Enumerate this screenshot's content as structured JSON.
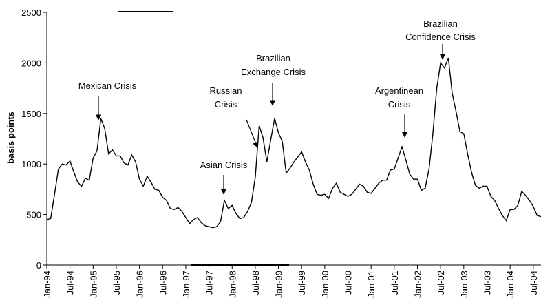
{
  "chart_data": {
    "type": "line",
    "y_label": "basis points",
    "categories": [
      "Jan-94",
      null,
      null,
      null,
      null,
      null,
      "Jul-94",
      null,
      null,
      null,
      null,
      null,
      "Jan-95",
      null,
      null,
      null,
      null,
      null,
      "Jul-95",
      null,
      null,
      null,
      null,
      null,
      "Jan-96",
      null,
      null,
      null,
      null,
      null,
      "Jul-96",
      null,
      null,
      null,
      null,
      null,
      "Jan-97",
      null,
      null,
      null,
      null,
      null,
      "Jul-97",
      null,
      null,
      null,
      null,
      null,
      "Jan-98",
      null,
      null,
      null,
      null,
      null,
      "Jul-98",
      null,
      null,
      null,
      null,
      null,
      "Jan-99",
      null,
      null,
      null,
      null,
      null,
      "Jul-99",
      null,
      null,
      null,
      null,
      null,
      "Jan-00",
      null,
      null,
      null,
      null,
      null,
      "Jul-00",
      null,
      null,
      null,
      null,
      null,
      "Jan-01",
      null,
      null,
      null,
      null,
      null,
      "Jul-01",
      null,
      null,
      null,
      null,
      null,
      "Jan-02",
      null,
      null,
      null,
      null,
      null,
      "Jul-02",
      null,
      null,
      null,
      null,
      null,
      "Jan-03",
      null,
      null,
      null,
      null,
      null,
      "Jul-03",
      null,
      null,
      null,
      null,
      null,
      "Jan-04",
      null,
      null,
      null,
      null,
      null,
      "Jul-04",
      null,
      null
    ],
    "values": [
      450,
      460,
      700,
      950,
      1000,
      990,
      1030,
      920,
      820,
      780,
      860,
      840,
      1060,
      1130,
      1450,
      1350,
      1100,
      1140,
      1080,
      1080,
      1010,
      990,
      1090,
      1020,
      850,
      780,
      880,
      820,
      750,
      740,
      670,
      640,
      560,
      550,
      570,
      530,
      470,
      410,
      450,
      470,
      420,
      390,
      380,
      370,
      380,
      430,
      640,
      560,
      590,
      510,
      460,
      470,
      530,
      620,
      870,
      1380,
      1260,
      1020,
      1240,
      1450,
      1310,
      1220,
      910,
      960,
      1020,
      1070,
      1120,
      1020,
      940,
      800,
      700,
      690,
      700,
      660,
      760,
      810,
      720,
      700,
      680,
      700,
      750,
      800,
      780,
      720,
      710,
      760,
      810,
      840,
      840,
      940,
      950,
      1060,
      1170,
      1040,
      900,
      850,
      850,
      740,
      760,
      950,
      1300,
      1750,
      2000,
      1950,
      2050,
      1700,
      1520,
      1320,
      1300,
      1100,
      920,
      790,
      760,
      780,
      780,
      680,
      640,
      560,
      490,
      440,
      550,
      550,
      590,
      730,
      690,
      640,
      580,
      490,
      480
    ],
    "color": "#000000",
    "ylim": [
      0,
      2500
    ],
    "yticks": [
      0,
      500,
      1000,
      1500,
      2000,
      2500
    ],
    "grid": false,
    "annotations": [
      [
        "Mexican Crisis"
      ],
      [
        "Asian Crisis"
      ],
      [
        "Russian",
        "Crisis"
      ],
      [
        "Brazilian",
        "Exchange Crisis"
      ],
      [
        "Argentinean",
        "Crisis"
      ],
      [
        "Brazilian",
        "Confidence Crisis"
      ]
    ]
  }
}
